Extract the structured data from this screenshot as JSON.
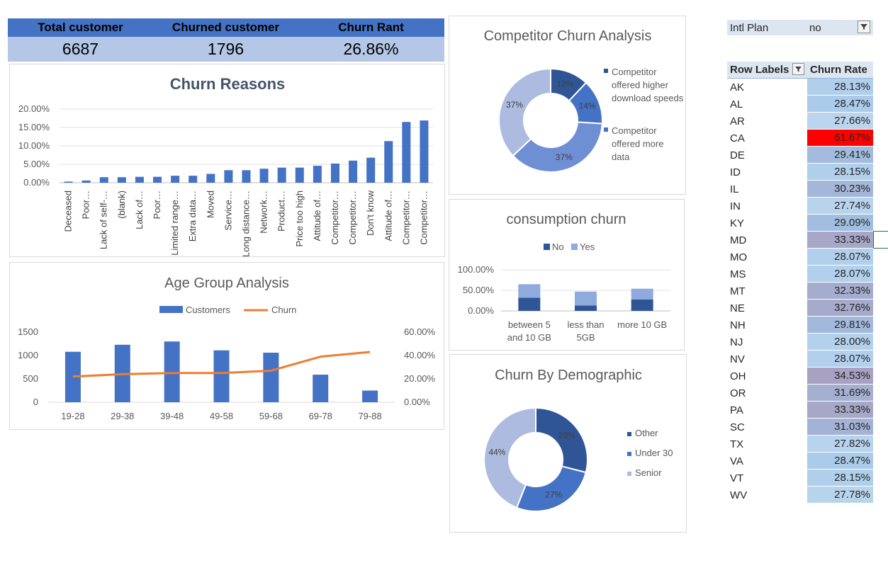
{
  "kpi": {
    "headers": [
      "Total customer",
      "Churned customer",
      "Churn Rant"
    ],
    "values": [
      "6687",
      "1796",
      "26.86%"
    ]
  },
  "colors": {
    "accent": "#4472c4",
    "dark_blue": "#2f5597",
    "light_blue": "#8faadc",
    "pale_blue": "#b4c7e7",
    "orange": "#ed7d31",
    "red_highlight": "#ff0000"
  },
  "chart_data": [
    {
      "id": "churn-reasons",
      "type": "bar",
      "title": "Churn Reasons",
      "categories": [
        "Deceased",
        "Poor…",
        "Lack of self-…",
        "(blank)",
        "Lack of…",
        "Poor…",
        "Limited range…",
        "Extra data…",
        "Moved",
        "Service…",
        "Long distance…",
        "Network…",
        "Product…",
        "Price too high",
        "Attitude of…",
        "Competitor…",
        "Competitor…",
        "Don't know",
        "Attitude of…",
        "Competitor…",
        "Competitor…"
      ],
      "values": [
        0.3,
        0.6,
        1.5,
        1.5,
        1.6,
        1.6,
        1.9,
        1.9,
        2.4,
        3.4,
        3.4,
        3.8,
        4.1,
        4.1,
        4.6,
        5.2,
        6.0,
        6.8,
        11.3,
        16.5,
        16.9
      ],
      "yticks": [
        "0.00%",
        "5.00%",
        "10.00%",
        "15.00%",
        "20.00%"
      ],
      "ylim": [
        0,
        20
      ]
    },
    {
      "id": "age-group",
      "type": "bar",
      "title": "Age Group Analysis",
      "categories": [
        "19-28",
        "29-38",
        "39-48",
        "49-58",
        "59-68",
        "69-78",
        "79-88"
      ],
      "series": [
        {
          "name": "Customers",
          "type": "bar",
          "values": [
            1080,
            1230,
            1300,
            1110,
            1060,
            590,
            250
          ]
        },
        {
          "name": "Churn",
          "type": "line",
          "values": [
            22,
            24,
            25,
            25,
            27,
            39,
            43
          ]
        }
      ],
      "yticks_left": [
        "0",
        "500",
        "1000",
        "1500"
      ],
      "yticks_right": [
        "0.00%",
        "20.00%",
        "40.00%",
        "60.00%"
      ],
      "ylim_left": [
        0,
        1500
      ],
      "ylim_right": [
        0,
        60
      ]
    },
    {
      "id": "competitor-churn",
      "type": "pie",
      "title": "Competitor Churn Analysis",
      "values": [
        12,
        14,
        37,
        37
      ],
      "labels": [
        "12%",
        "14%",
        "37%",
        "37%"
      ],
      "legend": [
        "Competitor offered higher download speeds",
        "Competitor offered more data"
      ]
    },
    {
      "id": "consumption-churn",
      "type": "bar",
      "title": "consumption churn",
      "categories": [
        "between 5 and 10 GB",
        "less than 5GB",
        "more 10 GB"
      ],
      "series": [
        {
          "name": "No",
          "values": [
            32,
            13,
            28
          ]
        },
        {
          "name": "Yes",
          "values": [
            33,
            34,
            26
          ]
        }
      ],
      "yticks": [
        "0.00%",
        "50.00%",
        "100.00%"
      ],
      "ylim": [
        0,
        100
      ]
    },
    {
      "id": "churn-demographic",
      "type": "pie",
      "title": "Churn By Demographic",
      "values": [
        29,
        27,
        44
      ],
      "labels": [
        "29%",
        "27%",
        "44%"
      ],
      "legend": [
        "Other",
        "Under 30",
        "Senior"
      ]
    }
  ],
  "pivot": {
    "filter_label": "Intl Plan",
    "filter_value": "no",
    "header_labels": "Row Labels",
    "header_value": "Churn Rate",
    "rows": [
      {
        "state": "AK",
        "rate": "28.13%",
        "value": 28.13
      },
      {
        "state": "AL",
        "rate": "28.47%",
        "value": 28.47
      },
      {
        "state": "AR",
        "rate": "27.66%",
        "value": 27.66
      },
      {
        "state": "CA",
        "rate": "61.67%",
        "value": 61.67
      },
      {
        "state": "DE",
        "rate": "29.41%",
        "value": 29.41
      },
      {
        "state": "ID",
        "rate": "28.15%",
        "value": 28.15
      },
      {
        "state": "IL",
        "rate": "30.23%",
        "value": 30.23
      },
      {
        "state": "IN",
        "rate": "27.74%",
        "value": 27.74
      },
      {
        "state": "KY",
        "rate": "29.09%",
        "value": 29.09
      },
      {
        "state": "MD",
        "rate": "33.33%",
        "value": 33.33
      },
      {
        "state": "MO",
        "rate": "28.07%",
        "value": 28.07
      },
      {
        "state": "MS",
        "rate": "28.07%",
        "value": 28.07
      },
      {
        "state": "MT",
        "rate": "32.33%",
        "value": 32.33
      },
      {
        "state": "NE",
        "rate": "32.76%",
        "value": 32.76
      },
      {
        "state": "NH",
        "rate": "29.81%",
        "value": 29.81
      },
      {
        "state": "NJ",
        "rate": "28.00%",
        "value": 28.0
      },
      {
        "state": "NV",
        "rate": "28.07%",
        "value": 28.07
      },
      {
        "state": "OH",
        "rate": "34.53%",
        "value": 34.53
      },
      {
        "state": "OR",
        "rate": "31.69%",
        "value": 31.69
      },
      {
        "state": "PA",
        "rate": "33.33%",
        "value": 33.33
      },
      {
        "state": "SC",
        "rate": "31.03%",
        "value": 31.03
      },
      {
        "state": "TX",
        "rate": "27.82%",
        "value": 27.82
      },
      {
        "state": "VA",
        "rate": "28.47%",
        "value": 28.47
      },
      {
        "state": "VT",
        "rate": "28.15%",
        "value": 28.15
      },
      {
        "state": "WV",
        "rate": "27.78%",
        "value": 27.78
      }
    ]
  }
}
